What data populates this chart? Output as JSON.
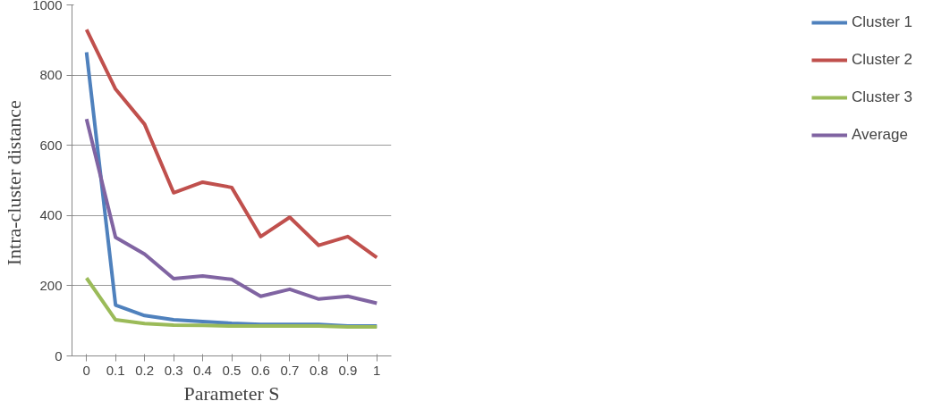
{
  "chart_data": {
    "type": "line",
    "xlabel": "Parameter S",
    "ylabel": "Intra-cluster  distance",
    "categories": [
      "0",
      "0.1",
      "0.2",
      "0.3",
      "0.4",
      "0.5",
      "0.6",
      "0.7",
      "0.8",
      "0.9",
      "1"
    ],
    "ylim": [
      0,
      1000
    ],
    "yticks": [
      0,
      200,
      400,
      600,
      800,
      1000
    ],
    "grid": "y",
    "legend": "right",
    "marker": "none",
    "line_style": "solid",
    "series": [
      {
        "name": "Cluster 1",
        "color": "#4f81bd",
        "values": [
          865,
          145,
          115,
          103,
          98,
          93,
          90,
          90,
          90,
          85,
          85
        ]
      },
      {
        "name": "Cluster 2",
        "color": "#c0504d",
        "values": [
          930,
          760,
          660,
          465,
          495,
          480,
          340,
          395,
          315,
          340,
          280
        ]
      },
      {
        "name": "Cluster 3",
        "color": "#9bbb59",
        "values": [
          222,
          103,
          92,
          88,
          87,
          85,
          85,
          85,
          85,
          83,
          83
        ]
      },
      {
        "name": "Average",
        "color": "#8064a2",
        "values": [
          675,
          338,
          290,
          220,
          228,
          218,
          170,
          190,
          162,
          170,
          150
        ]
      }
    ]
  }
}
